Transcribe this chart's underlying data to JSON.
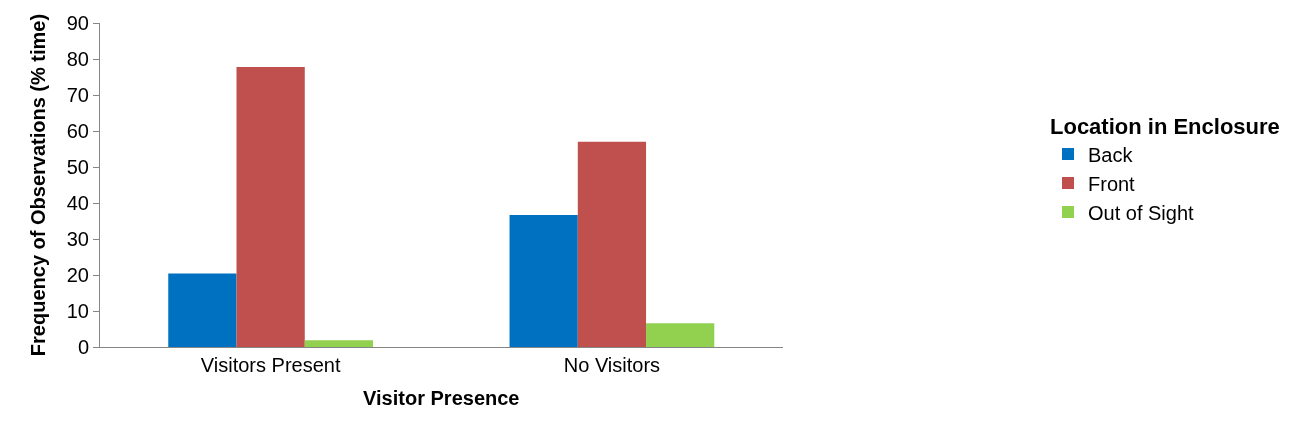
{
  "chart_data": {
    "type": "bar",
    "xlabel": "Visitor Presence",
    "ylabel": "Frequency of Observations (% time)",
    "legend_title": "Location in Enclosure",
    "categories": [
      "Visitors Present",
      "No Visitors"
    ],
    "series": [
      {
        "name": "Back",
        "color": "#0070c0",
        "values": [
          20.4,
          36.7
        ]
      },
      {
        "name": "Front",
        "color": "#c0504d",
        "values": [
          77.8,
          57
        ]
      },
      {
        "name": "Out of Sight",
        "color": "#92d050",
        "values": [
          1.9,
          6.6
        ]
      }
    ],
    "ylim": [
      0,
      90
    ],
    "yticks": [
      0,
      10,
      20,
      30,
      40,
      50,
      60,
      70,
      80,
      90
    ],
    "legend": "right"
  }
}
